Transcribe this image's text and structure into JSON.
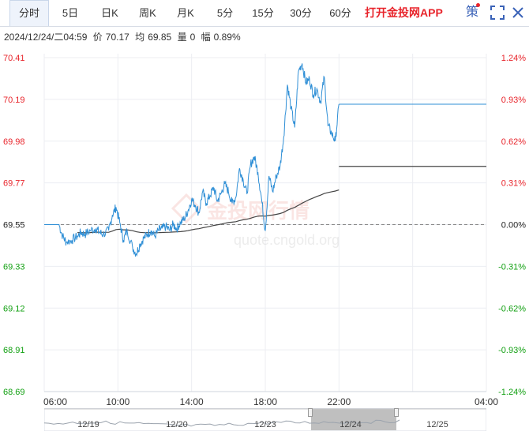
{
  "tabs": [
    {
      "label": "分时",
      "active": true
    },
    {
      "label": "5日"
    },
    {
      "label": "日K"
    },
    {
      "label": "周K"
    },
    {
      "label": "月K"
    },
    {
      "label": "5分"
    },
    {
      "label": "15分"
    },
    {
      "label": "30分"
    },
    {
      "label": "60分"
    }
  ],
  "app_link": "打开金投网APP",
  "ce_icon": {
    "label": "策",
    "name": "strategy-icon",
    "badge_color": "#e8242b"
  },
  "icons": [
    "fullscreen-icon",
    "close-icon"
  ],
  "info": {
    "datetime": "2024/12/24/二04:59",
    "price_label": "价",
    "price": "70.17",
    "avg_label": "均",
    "avg": "69.85",
    "vol_label": "量",
    "vol": "0",
    "chg_label": "幅",
    "chg": "0.89%"
  },
  "watermark": {
    "cn": "金投网行情",
    "url": "quote.cngold.org"
  },
  "nav_dates": [
    "12/19",
    "12/20",
    "12/23",
    "12/24",
    "12/25"
  ],
  "colors": {
    "up": "#e8242b",
    "down": "#12a012",
    "price": "#2f8fd6",
    "avg": "#444444",
    "accent": "#3b63b8"
  },
  "chart_data": {
    "type": "line",
    "y_left_ticks": [
      "70.41",
      "70.19",
      "69.98",
      "69.77",
      "69.55",
      "69.33",
      "69.12",
      "68.91",
      "68.69"
    ],
    "y_right_ticks": [
      "1.24%",
      "0.93%",
      "0.62%",
      "0.31%",
      "0.00%",
      "-0.31%",
      "-0.62%",
      "-0.93%",
      "-1.24%"
    ],
    "x_ticks": [
      "06:00",
      "10:00",
      "14:00",
      "18:00",
      "22:00",
      "04:00"
    ],
    "ylim": [
      68.69,
      70.41
    ],
    "prev_close": 69.55,
    "x_hours": [
      0,
      24
    ],
    "series": [
      {
        "kind": "price",
        "x": [
          0,
          0.4,
          0.8,
          1.0,
          1.2,
          1.5,
          1.8,
          2.0,
          2.2,
          2.5,
          2.8,
          3.0,
          3.2,
          3.5,
          3.7,
          3.9,
          4.1,
          4.3,
          4.5,
          4.8,
          5.0,
          5.2,
          5.4,
          5.6,
          5.8,
          6.0,
          6.2,
          6.4,
          6.6,
          6.8,
          7.0,
          7.2,
          7.4,
          7.6,
          7.8,
          8.0,
          8.2,
          8.4,
          8.6,
          8.8,
          9.0,
          9.2,
          9.4,
          9.6,
          9.8,
          10.0,
          10.2,
          10.4,
          10.6,
          10.8,
          11.0,
          11.2,
          11.4,
          11.6,
          11.8,
          12.0,
          12.2,
          12.4,
          12.6,
          12.8,
          13.0,
          13.2,
          13.4,
          13.6,
          13.8,
          14.0,
          14.2,
          14.4,
          14.6,
          14.8,
          15.0,
          15.2,
          15.4,
          15.6,
          15.8,
          16.0,
          16.2,
          16.4,
          16.6,
          16.8,
          17.0,
          17.2,
          17.4,
          17.6,
          17.8,
          18.0,
          18.2,
          18.4,
          18.6,
          18.8,
          19.0,
          19.2,
          19.4,
          19.6,
          19.8,
          20.0,
          20.2,
          20.4,
          20.6,
          20.8,
          21.0,
          21.2,
          21.4,
          21.6,
          21.8,
          22.0,
          22.2,
          22.4,
          22.6,
          22.8,
          23.0,
          23.2,
          23.4,
          23.6,
          23.8,
          24.0
        ],
        "values": [
          69.55,
          69.55,
          69.55,
          69.49,
          69.46,
          69.47,
          69.49,
          69.51,
          69.5,
          69.52,
          69.53,
          69.51,
          69.5,
          69.52,
          69.6,
          69.64,
          69.56,
          69.47,
          69.52,
          69.43,
          69.4,
          69.45,
          69.48,
          69.5,
          69.52,
          69.49,
          69.52,
          69.53,
          69.54,
          69.52,
          69.55,
          69.53,
          69.56,
          69.58,
          69.62,
          69.68,
          69.65,
          69.61,
          69.72,
          69.66,
          69.7,
          69.74,
          69.67,
          69.71,
          69.76,
          69.72,
          69.66,
          69.69,
          69.84,
          69.78,
          69.71,
          69.86,
          69.9,
          69.82,
          69.68,
          69.52,
          69.8,
          69.72,
          69.8,
          69.85,
          70.0,
          70.27,
          70.15,
          70.05,
          70.34,
          70.38,
          70.28,
          70.3,
          70.22,
          70.25,
          70.18,
          70.31,
          70.06,
          70.02,
          69.98,
          70.17,
          null,
          null,
          null,
          null,
          null,
          null,
          null,
          null,
          null,
          null,
          null,
          null,
          null,
          null,
          null,
          null,
          null,
          null,
          null,
          null,
          null,
          null,
          null,
          null,
          null,
          null,
          null,
          null,
          null,
          null,
          null,
          null,
          null,
          null,
          null,
          null,
          null,
          null,
          null,
          null
        ]
      }
    ]
  }
}
